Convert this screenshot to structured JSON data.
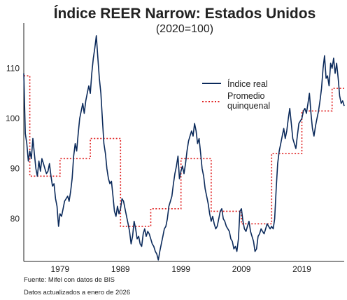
{
  "chart_data": {
    "type": "line",
    "title": "Índice REER Narrow: Estados Unidos",
    "subtitle": "(2020=100)",
    "xlabel": "",
    "ylabel": "",
    "xlim": [
      1973,
      2026
    ],
    "ylim": [
      71.5,
      119
    ],
    "x_ticks": [
      1979,
      1989,
      1999,
      2009,
      2019
    ],
    "y_ticks": [
      80,
      90,
      100,
      110
    ],
    "grid": false,
    "legend": "right, upper-middle",
    "series": [
      {
        "name": "Índice real",
        "color": "#0b2a5b",
        "style": "solid",
        "points": [
          [
            1973.0,
            109.0
          ],
          [
            1973.25,
            97.0
          ],
          [
            1973.5,
            95.0
          ],
          [
            1973.75,
            91.5
          ],
          [
            1974.0,
            93.5
          ],
          [
            1974.25,
            92.0
          ],
          [
            1974.5,
            96.0
          ],
          [
            1974.75,
            93.0
          ],
          [
            1975.0,
            90.0
          ],
          [
            1975.25,
            88.5
          ],
          [
            1975.5,
            91.5
          ],
          [
            1975.75,
            89.5
          ],
          [
            1976.0,
            92.0
          ],
          [
            1976.25,
            91.0
          ],
          [
            1976.5,
            90.0
          ],
          [
            1976.75,
            89.0
          ],
          [
            1977.0,
            89.5
          ],
          [
            1977.25,
            91.0
          ],
          [
            1977.5,
            88.5
          ],
          [
            1977.75,
            86.5
          ],
          [
            1978.0,
            87.0
          ],
          [
            1978.25,
            84.0
          ],
          [
            1978.5,
            82.5
          ],
          [
            1978.75,
            78.5
          ],
          [
            1979.0,
            81.0
          ],
          [
            1979.25,
            80.5
          ],
          [
            1979.5,
            82.0
          ],
          [
            1979.75,
            83.5
          ],
          [
            1980.0,
            84.0
          ],
          [
            1980.25,
            84.5
          ],
          [
            1980.5,
            83.5
          ],
          [
            1980.75,
            85.5
          ],
          [
            1981.0,
            88.0
          ],
          [
            1981.25,
            92.5
          ],
          [
            1981.5,
            95.0
          ],
          [
            1981.75,
            93.5
          ],
          [
            1982.0,
            97.0
          ],
          [
            1982.25,
            100.0
          ],
          [
            1982.5,
            101.5
          ],
          [
            1982.75,
            103.0
          ],
          [
            1983.0,
            101.0
          ],
          [
            1983.25,
            103.5
          ],
          [
            1983.5,
            105.0
          ],
          [
            1983.75,
            106.5
          ],
          [
            1984.0,
            105.0
          ],
          [
            1984.25,
            109.0
          ],
          [
            1984.5,
            112.0
          ],
          [
            1984.75,
            114.0
          ],
          [
            1985.0,
            116.5
          ],
          [
            1985.2,
            113.0
          ],
          [
            1985.5,
            108.0
          ],
          [
            1985.75,
            105.0
          ],
          [
            1986.0,
            100.0
          ],
          [
            1986.25,
            95.0
          ],
          [
            1986.5,
            93.0
          ],
          [
            1986.75,
            90.0
          ],
          [
            1987.0,
            88.0
          ],
          [
            1987.25,
            87.0
          ],
          [
            1987.5,
            87.5
          ],
          [
            1987.75,
            84.5
          ],
          [
            1988.0,
            81.5
          ],
          [
            1988.25,
            80.5
          ],
          [
            1988.5,
            82.5
          ],
          [
            1988.75,
            81.0
          ],
          [
            1989.0,
            82.0
          ],
          [
            1989.25,
            84.0
          ],
          [
            1989.5,
            83.5
          ],
          [
            1989.75,
            82.0
          ],
          [
            1990.0,
            80.5
          ],
          [
            1990.25,
            79.0
          ],
          [
            1990.5,
            77.5
          ],
          [
            1990.75,
            75.0
          ],
          [
            1991.0,
            76.5
          ],
          [
            1991.25,
            79.5
          ],
          [
            1991.5,
            78.0
          ],
          [
            1991.75,
            76.0
          ],
          [
            1992.0,
            76.5
          ],
          [
            1992.25,
            75.0
          ],
          [
            1992.5,
            74.5
          ],
          [
            1992.75,
            77.0
          ],
          [
            1993.0,
            78.0
          ],
          [
            1993.25,
            76.5
          ],
          [
            1993.5,
            77.5
          ],
          [
            1993.75,
            77.0
          ],
          [
            1994.0,
            76.0
          ],
          [
            1994.25,
            75.0
          ],
          [
            1994.5,
            74.5
          ],
          [
            1994.75,
            73.5
          ],
          [
            1995.0,
            73.0
          ],
          [
            1995.25,
            71.8
          ],
          [
            1995.5,
            73.5
          ],
          [
            1995.75,
            75.0
          ],
          [
            1996.0,
            76.5
          ],
          [
            1996.25,
            78.0
          ],
          [
            1996.5,
            78.5
          ],
          [
            1996.75,
            80.0
          ],
          [
            1997.0,
            82.5
          ],
          [
            1997.25,
            83.5
          ],
          [
            1997.5,
            84.5
          ],
          [
            1997.75,
            87.0
          ],
          [
            1998.0,
            89.0
          ],
          [
            1998.25,
            90.5
          ],
          [
            1998.5,
            92.5
          ],
          [
            1998.75,
            88.0
          ],
          [
            1999.0,
            89.5
          ],
          [
            1999.25,
            90.5
          ],
          [
            1999.5,
            89.0
          ],
          [
            1999.75,
            91.0
          ],
          [
            2000.0,
            93.5
          ],
          [
            2000.25,
            95.5
          ],
          [
            2000.5,
            96.5
          ],
          [
            2000.75,
            97.5
          ],
          [
            2001.0,
            96.5
          ],
          [
            2001.25,
            99.0
          ],
          [
            2001.5,
            97.5
          ],
          [
            2001.75,
            95.0
          ],
          [
            2002.0,
            96.0
          ],
          [
            2002.25,
            93.0
          ],
          [
            2002.5,
            90.0
          ],
          [
            2002.75,
            88.5
          ],
          [
            2003.0,
            86.0
          ],
          [
            2003.25,
            84.5
          ],
          [
            2003.5,
            83.0
          ],
          [
            2003.75,
            81.0
          ],
          [
            2004.0,
            79.5
          ],
          [
            2004.25,
            80.5
          ],
          [
            2004.5,
            79.0
          ],
          [
            2004.75,
            78.0
          ],
          [
            2005.0,
            78.5
          ],
          [
            2005.25,
            80.0
          ],
          [
            2005.5,
            81.5
          ],
          [
            2005.75,
            82.0
          ],
          [
            2006.0,
            80.0
          ],
          [
            2006.25,
            79.5
          ],
          [
            2006.5,
            78.5
          ],
          [
            2006.75,
            78.0
          ],
          [
            2007.0,
            77.5
          ],
          [
            2007.25,
            76.0
          ],
          [
            2007.5,
            75.5
          ],
          [
            2007.75,
            74.0
          ],
          [
            2008.0,
            74.5
          ],
          [
            2008.25,
            73.5
          ],
          [
            2008.5,
            76.0
          ],
          [
            2008.75,
            81.5
          ],
          [
            2009.0,
            82.0
          ],
          [
            2009.25,
            79.5
          ],
          [
            2009.5,
            78.0
          ],
          [
            2009.75,
            77.5
          ],
          [
            2010.0,
            78.5
          ],
          [
            2010.25,
            79.5
          ],
          [
            2010.5,
            77.5
          ],
          [
            2010.75,
            76.5
          ],
          [
            2011.0,
            75.5
          ],
          [
            2011.25,
            73.5
          ],
          [
            2011.5,
            74.0
          ],
          [
            2011.75,
            76.5
          ],
          [
            2012.0,
            77.0
          ],
          [
            2012.25,
            78.0
          ],
          [
            2012.5,
            77.5
          ],
          [
            2012.75,
            77.0
          ],
          [
            2013.0,
            78.0
          ],
          [
            2013.25,
            79.0
          ],
          [
            2013.5,
            78.5
          ],
          [
            2013.75,
            78.0
          ],
          [
            2014.0,
            78.5
          ],
          [
            2014.25,
            78.0
          ],
          [
            2014.5,
            80.0
          ],
          [
            2014.75,
            86.0
          ],
          [
            2015.0,
            91.0
          ],
          [
            2015.25,
            93.5
          ],
          [
            2015.5,
            95.0
          ],
          [
            2015.75,
            96.5
          ],
          [
            2016.0,
            98.0
          ],
          [
            2016.25,
            96.0
          ],
          [
            2016.5,
            97.5
          ],
          [
            2016.75,
            100.0
          ],
          [
            2017.0,
            102.0
          ],
          [
            2017.25,
            99.0
          ],
          [
            2017.5,
            96.0
          ],
          [
            2017.75,
            95.0
          ],
          [
            2018.0,
            94.0
          ],
          [
            2018.25,
            96.5
          ],
          [
            2018.5,
            99.0
          ],
          [
            2018.75,
            99.5
          ],
          [
            2019.0,
            100.0
          ],
          [
            2019.25,
            101.5
          ],
          [
            2019.5,
            102.0
          ],
          [
            2019.75,
            101.0
          ],
          [
            2020.0,
            103.0
          ],
          [
            2020.25,
            105.0
          ],
          [
            2020.5,
            101.0
          ],
          [
            2020.75,
            98.0
          ],
          [
            2021.0,
            96.5
          ],
          [
            2021.25,
            98.5
          ],
          [
            2021.5,
            100.0
          ],
          [
            2021.75,
            101.5
          ],
          [
            2022.0,
            103.5
          ],
          [
            2022.25,
            106.0
          ],
          [
            2022.5,
            110.0
          ],
          [
            2022.75,
            112.5
          ],
          [
            2023.0,
            108.0
          ],
          [
            2023.25,
            108.5
          ],
          [
            2023.5,
            106.5
          ],
          [
            2023.75,
            111.0
          ],
          [
            2024.0,
            110.0
          ],
          [
            2024.25,
            112.0
          ],
          [
            2024.5,
            109.0
          ],
          [
            2024.75,
            111.0
          ],
          [
            2025.0,
            108.0
          ],
          [
            2025.25,
            104.5
          ],
          [
            2025.5,
            103.0
          ],
          [
            2025.75,
            103.5
          ],
          [
            2026.0,
            102.5
          ]
        ]
      },
      {
        "name": "Promedio quinquenal",
        "color": "#e02020",
        "style": "dotted",
        "steps": [
          [
            1973.0,
            1974.0,
            108.5
          ],
          [
            1974.0,
            1979.0,
            88.5
          ],
          [
            1979.0,
            1984.0,
            92.0
          ],
          [
            1984.0,
            1989.0,
            96.0
          ],
          [
            1989.0,
            1994.0,
            78.5
          ],
          [
            1994.0,
            1999.0,
            82.0
          ],
          [
            1999.0,
            2004.0,
            92.0
          ],
          [
            2004.0,
            2009.0,
            81.5
          ],
          [
            2009.0,
            2014.0,
            79.0
          ],
          [
            2014.0,
            2019.0,
            93.0
          ],
          [
            2019.0,
            2024.0,
            101.5
          ],
          [
            2024.0,
            2026.0,
            106.0
          ]
        ]
      }
    ]
  },
  "legend": {
    "items": [
      {
        "label_lines": [
          "Índice real"
        ]
      },
      {
        "label_lines": [
          "Promedio",
          "quinquenal"
        ]
      }
    ]
  },
  "footer": {
    "source": "Fuente: Mifel con datos de BIS",
    "updated": "Datos actualizados a enero de 2026"
  }
}
